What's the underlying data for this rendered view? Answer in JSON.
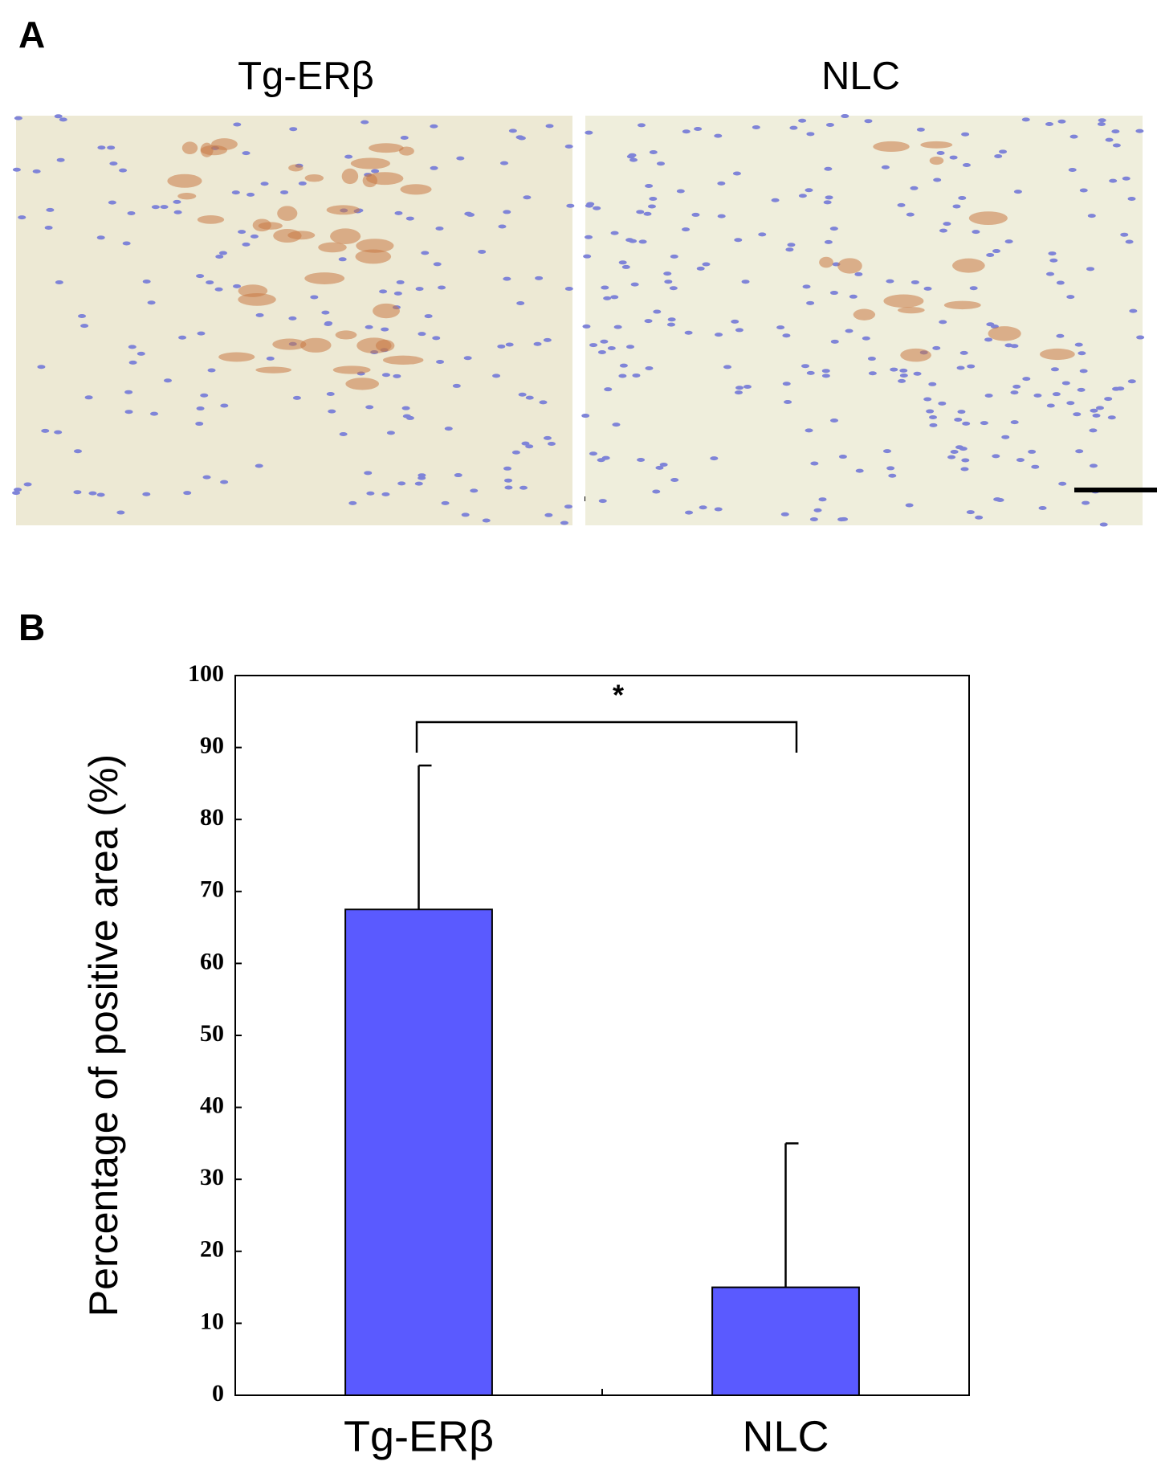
{
  "panels": {
    "a": {
      "label": "A",
      "images": [
        {
          "title": "Tg-ERβ"
        },
        {
          "title": "NLC"
        }
      ]
    }
  },
  "chart_data": {
    "type": "bar",
    "panel_label": "B",
    "ylabel": "Percentage of positive area (%)",
    "categories": [
      "Tg-ERβ",
      "NLC"
    ],
    "values": [
      67.5,
      15
    ],
    "errors": [
      20,
      20
    ],
    "color": "#5a5aff",
    "ylim": [
      0,
      100
    ],
    "yticks": [
      0,
      10,
      20,
      30,
      40,
      50,
      60,
      70,
      80,
      90,
      100
    ],
    "grid": false,
    "annotation": "*"
  }
}
